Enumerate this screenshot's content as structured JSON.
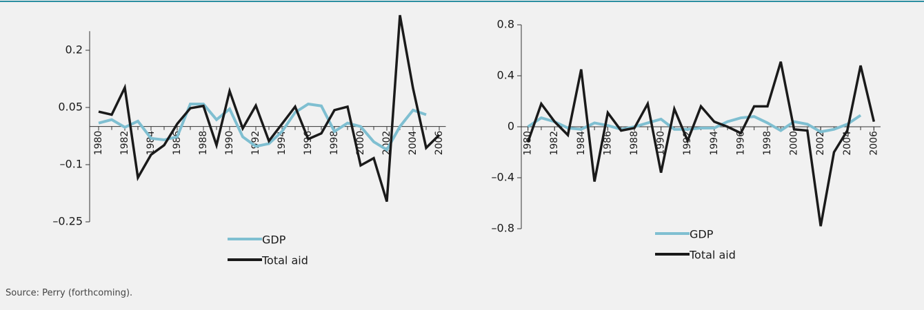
{
  "chart_data": [
    {
      "type": "line",
      "x": [
        1980,
        1981,
        1982,
        1983,
        1984,
        1985,
        1986,
        1987,
        1988,
        1989,
        1990,
        1991,
        1992,
        1993,
        1994,
        1995,
        1996,
        1997,
        1998,
        1999,
        2000,
        2001,
        2002,
        2003,
        2004,
        2005,
        2006
      ],
      "series": [
        {
          "name": "GDP",
          "color": "#7fbfd1",
          "values": [
            0.009,
            0.018,
            -0.002,
            0.014,
            -0.031,
            -0.035,
            -0.027,
            0.059,
            0.059,
            0.018,
            0.046,
            -0.027,
            -0.052,
            -0.045,
            -0.013,
            0.037,
            0.059,
            0.054,
            -0.013,
            0.009,
            0.0,
            -0.04,
            -0.061,
            0.0,
            0.043,
            0.031,
            null
          ]
        },
        {
          "name": "Total aid",
          "color": "#1a1a1a",
          "values": [
            0.039,
            0.031,
            0.102,
            -0.134,
            -0.074,
            -0.049,
            0.007,
            0.048,
            0.054,
            -0.049,
            0.093,
            -0.005,
            0.055,
            -0.038,
            0.007,
            0.052,
            -0.033,
            -0.018,
            0.043,
            0.052,
            -0.102,
            -0.083,
            -0.197,
            0.292,
            0.1,
            -0.056,
            -0.022
          ]
        }
      ],
      "xlim": [
        1979.5,
        2006.5
      ],
      "xticks": [
        1980,
        1982,
        1984,
        1986,
        1988,
        1990,
        1992,
        1994,
        1996,
        1998,
        2000,
        2002,
        2004,
        2006
      ],
      "ylim": [
        -0.25,
        0.25
      ],
      "yticks": [
        {
          "value": -0.25,
          "label": "–0.25"
        },
        {
          "value": -0.1,
          "label": "–0.1"
        },
        0.05,
        0.2
      ]
    },
    {
      "type": "line",
      "x": [
        1980,
        1981,
        1982,
        1983,
        1984,
        1985,
        1986,
        1987,
        1988,
        1989,
        1990,
        1991,
        1992,
        1993,
        1994,
        1995,
        1996,
        1997,
        1998,
        1999,
        2000,
        2001,
        2002,
        2003,
        2004,
        2005,
        2006
      ],
      "series": [
        {
          "name": "GDP",
          "color": "#7fbfd1",
          "values": [
            0.0,
            0.07,
            0.04,
            -0.01,
            -0.02,
            0.03,
            0.01,
            -0.02,
            0.0,
            0.03,
            0.06,
            -0.02,
            -0.02,
            -0.01,
            -0.01,
            0.04,
            0.07,
            0.08,
            0.03,
            -0.03,
            0.04,
            0.02,
            -0.04,
            -0.02,
            0.02,
            0.09,
            null
          ]
        },
        {
          "name": "Total aid",
          "color": "#1a1a1a",
          "values": [
            -0.12,
            0.18,
            0.04,
            -0.065,
            0.45,
            -0.43,
            0.11,
            -0.03,
            -0.01,
            0.18,
            -0.36,
            0.14,
            -0.11,
            0.16,
            0.04,
            0.0,
            -0.05,
            0.16,
            0.16,
            0.51,
            -0.02,
            -0.03,
            -0.78,
            -0.2,
            -0.03,
            0.48,
            0.04
          ]
        }
      ],
      "xlim": [
        1979.5,
        2006.5
      ],
      "xticks": [
        1980,
        1982,
        1984,
        1986,
        1988,
        1990,
        1992,
        1994,
        1996,
        1998,
        2000,
        2002,
        2004,
        2006
      ],
      "ylim": [
        -0.8,
        0.8
      ],
      "yticks": [
        {
          "value": -0.8,
          "label": "–0.8"
        },
        {
          "value": -0.4,
          "label": "–0.4"
        },
        0,
        0.4,
        0.8
      ]
    }
  ],
  "source": "Source: Perry (forthcoming)."
}
